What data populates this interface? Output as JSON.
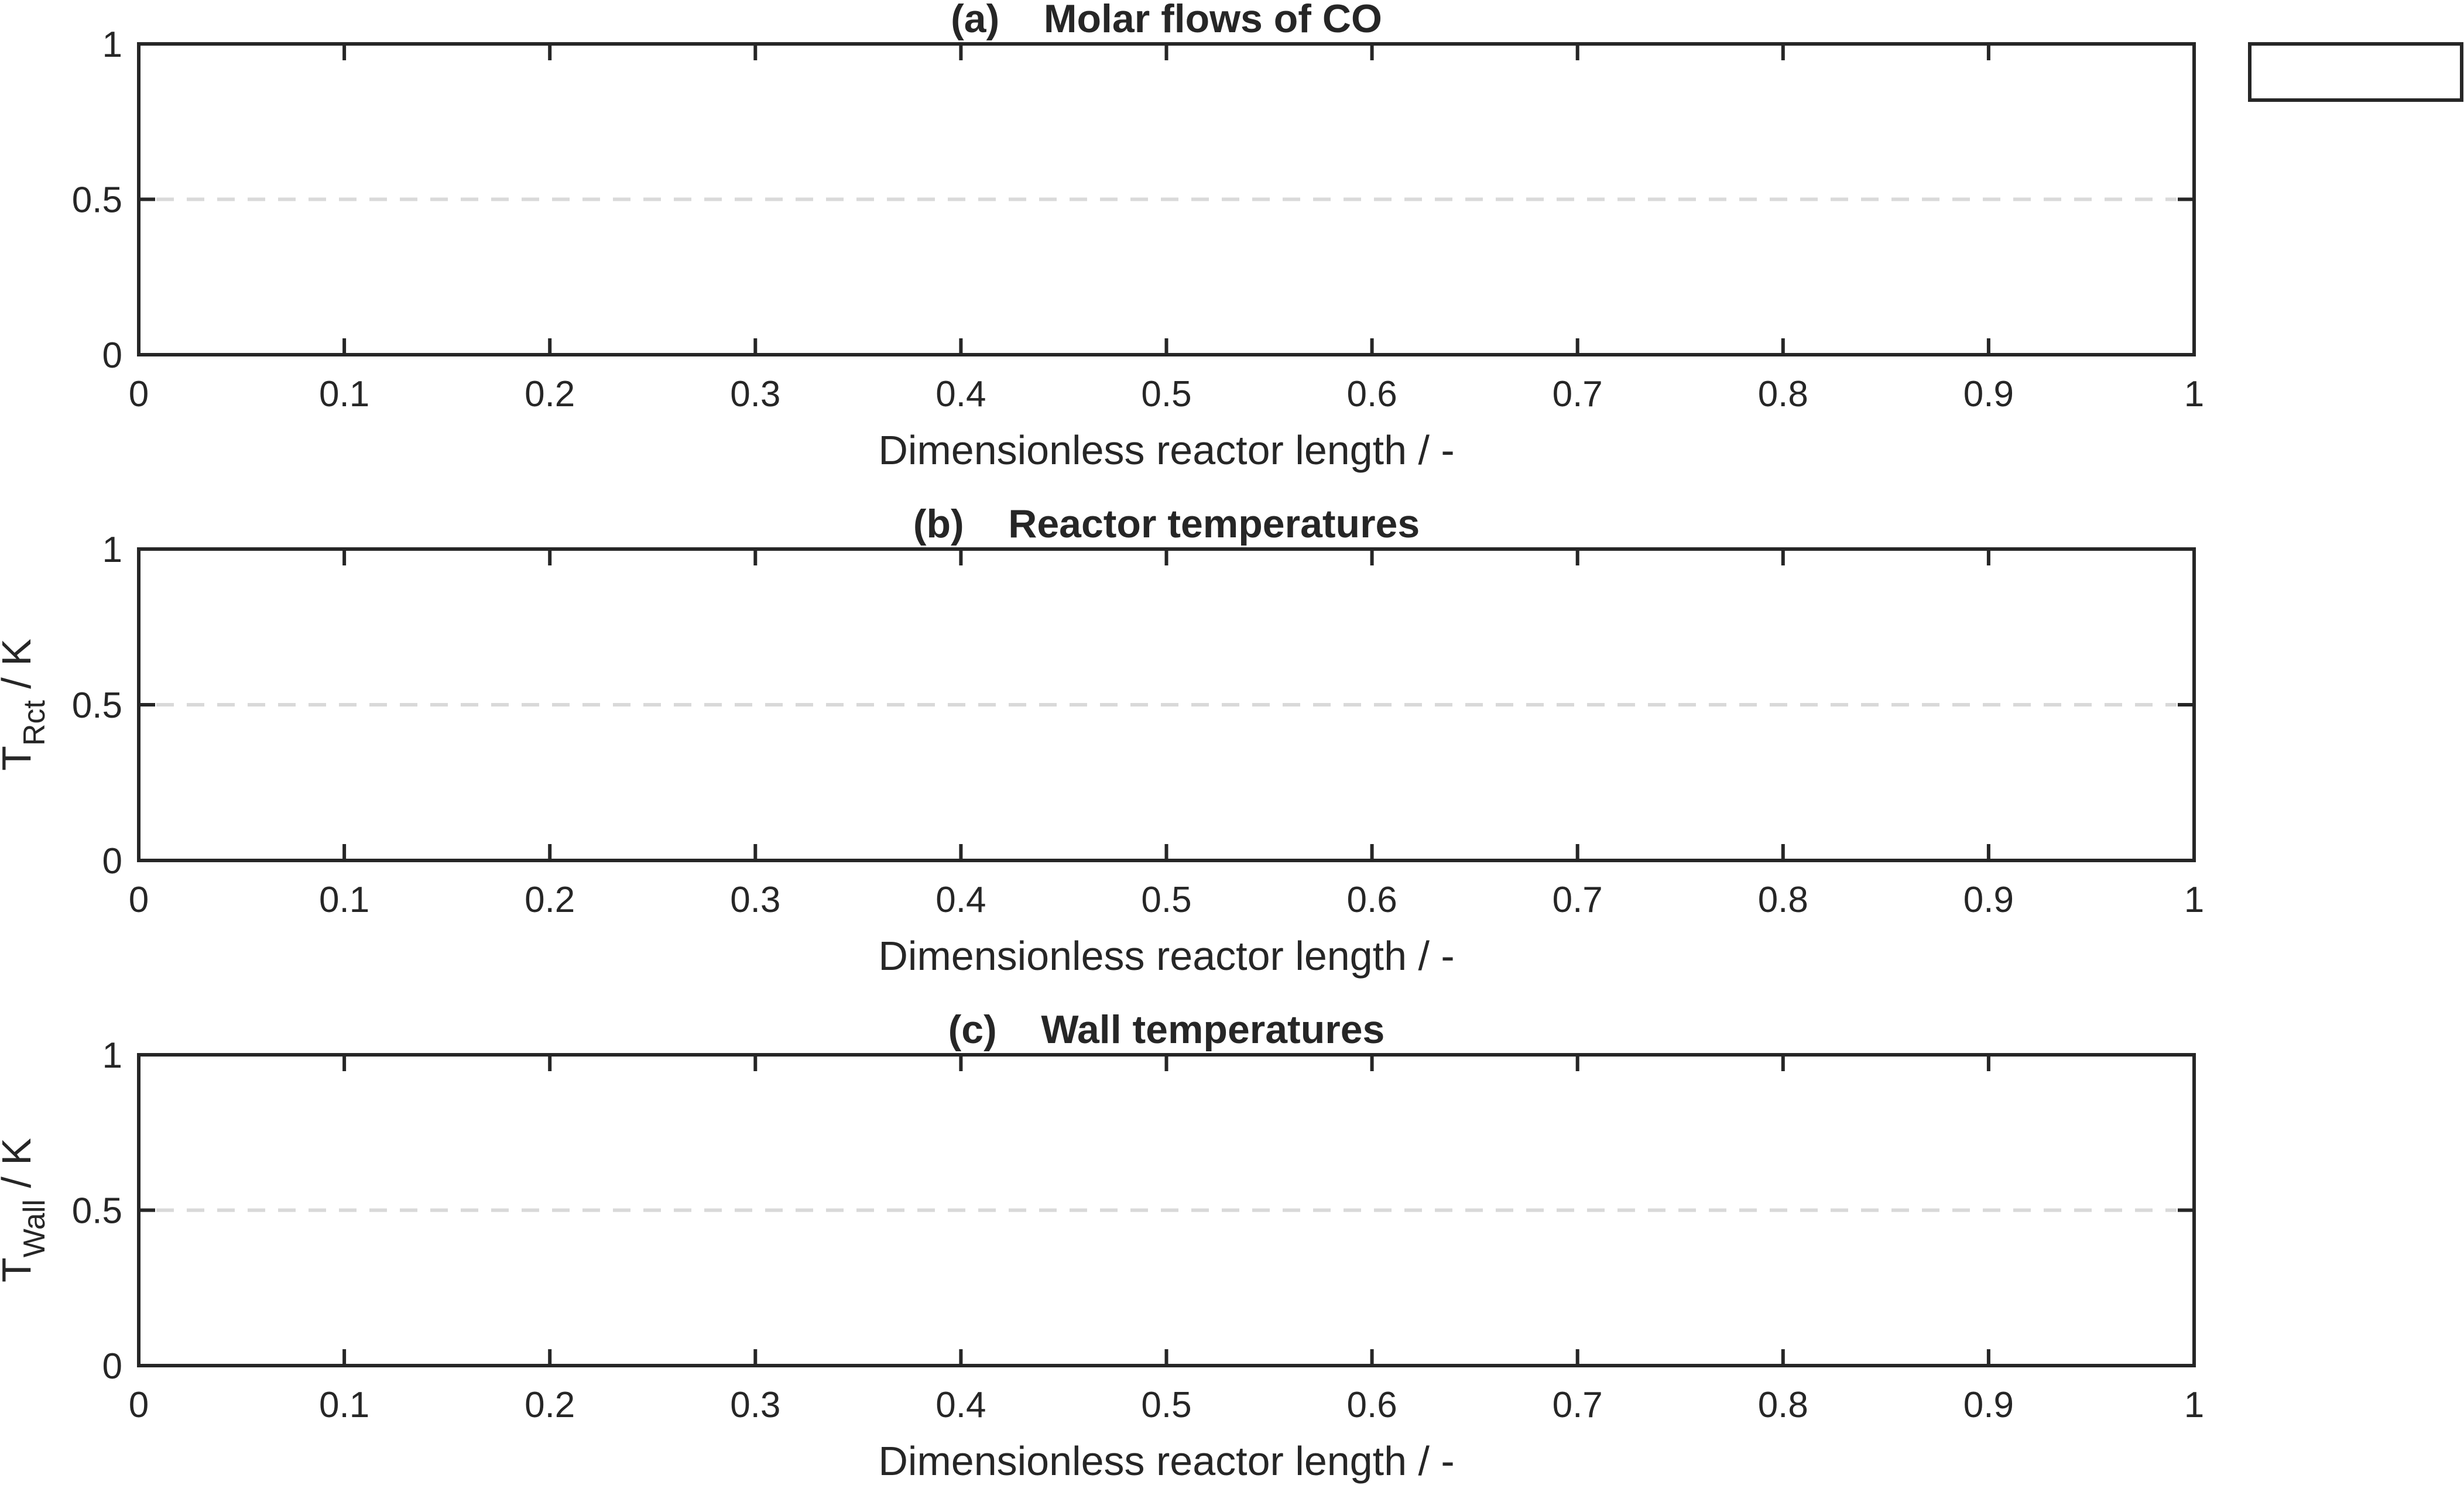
{
  "chart_data": [
    {
      "type": "line",
      "title_tag": "(a)",
      "title": "Molar flows of CO",
      "xlabel": "Dimensionless reactor length / -",
      "ylabel": "",
      "xlim": [
        0,
        1
      ],
      "ylim": [
        0,
        1
      ],
      "xticks": [
        "0",
        "0.1",
        "0.2",
        "0.3",
        "0.4",
        "0.5",
        "0.6",
        "0.7",
        "0.8",
        "0.9",
        "1"
      ],
      "yticks": [
        "0",
        "0.5",
        "1"
      ],
      "reference_line": {
        "y": 0.5,
        "style": "dashed",
        "color": "#d9d9d9"
      },
      "series": [],
      "legend": {
        "placement": "outside-top-right",
        "entries": []
      }
    },
    {
      "type": "line",
      "title_tag": "(b)",
      "title": "Reactor temperatures",
      "xlabel": "Dimensionless reactor length / -",
      "ylabel": {
        "symbol": "T",
        "subscript": "Rct",
        "unit": " / K"
      },
      "xlim": [
        0,
        1
      ],
      "ylim": [
        0,
        1
      ],
      "xticks": [
        "0",
        "0.1",
        "0.2",
        "0.3",
        "0.4",
        "0.5",
        "0.6",
        "0.7",
        "0.8",
        "0.9",
        "1"
      ],
      "yticks": [
        "0",
        "0.5",
        "1"
      ],
      "reference_line": {
        "y": 0.5,
        "style": "dashed",
        "color": "#d9d9d9"
      },
      "series": []
    },
    {
      "type": "line",
      "title_tag": "(c)",
      "title": "Wall temperatures",
      "xlabel": "Dimensionless reactor length / -",
      "ylabel": {
        "symbol": "T",
        "subscript": "Wall",
        "unit": " / K"
      },
      "xlim": [
        0,
        1
      ],
      "ylim": [
        0,
        1
      ],
      "xticks": [
        "0",
        "0.1",
        "0.2",
        "0.3",
        "0.4",
        "0.5",
        "0.6",
        "0.7",
        "0.8",
        "0.9",
        "1"
      ],
      "yticks": [
        "0",
        "0.5",
        "1"
      ],
      "reference_line": {
        "y": 0.5,
        "style": "dashed",
        "color": "#d9d9d9"
      },
      "series": []
    }
  ],
  "colors": {
    "axes": "#262626",
    "grid_dashed": "#d9d9d9",
    "background": "#ffffff"
  }
}
